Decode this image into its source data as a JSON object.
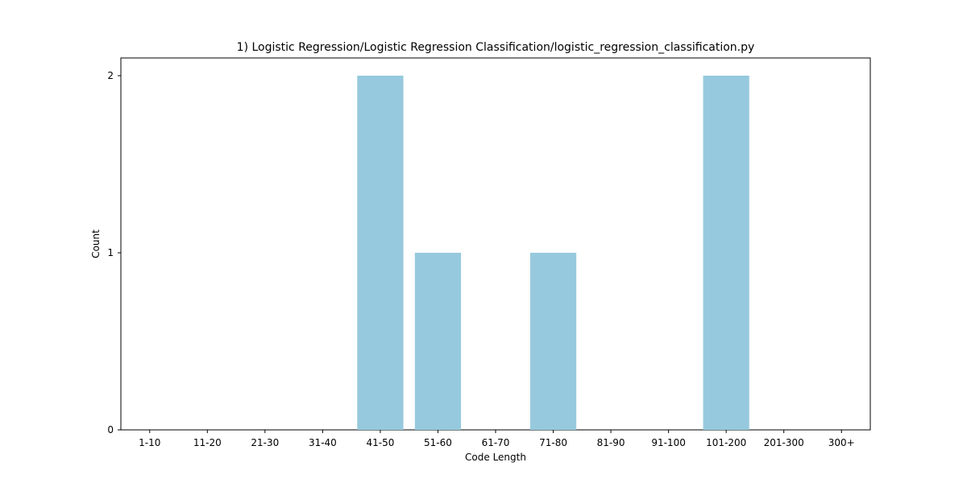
{
  "chart_data": {
    "type": "bar",
    "title": "1) Logistic Regression/Logistic Regression Classification/logistic_regression_classification.py",
    "xlabel": "Code Length",
    "ylabel": "Count",
    "categories": [
      "1-10",
      "11-20",
      "21-30",
      "31-40",
      "41-50",
      "51-60",
      "61-70",
      "71-80",
      "81-90",
      "91-100",
      "101-200",
      "201-300",
      "300+"
    ],
    "values": [
      0,
      0,
      0,
      0,
      2,
      1,
      0,
      1,
      0,
      0,
      2,
      0,
      0
    ],
    "ylim": [
      0,
      2.1
    ],
    "yticks": [
      0,
      1,
      2
    ],
    "grid": false,
    "bar_color": "#96c9dd"
  }
}
